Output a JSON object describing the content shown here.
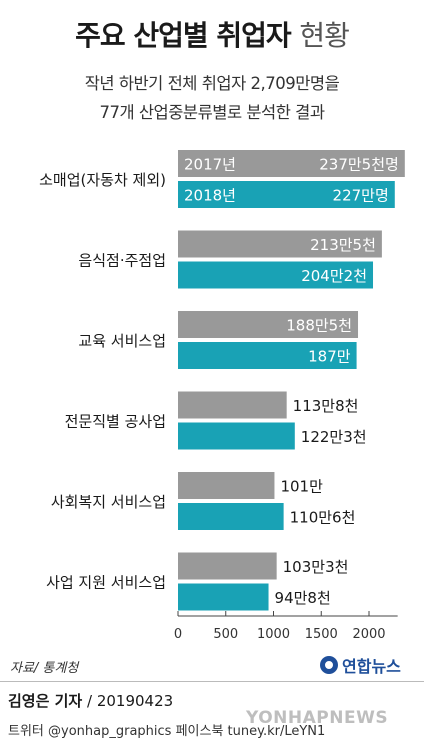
{
  "title": {
    "main": "주요 산업별 취업자",
    "suffix": "현황"
  },
  "subtitle": {
    "line1": "작년 하반기 전체 취업자 2,709만명을",
    "line2": "77개 산업중분류별로 분석한 결과"
  },
  "colors": {
    "y2017": "#999999",
    "y2018": "#19a2b5",
    "axis": "#444444"
  },
  "chart_data": {
    "type": "bar",
    "orientation": "horizontal",
    "categories": [
      "소매업(자동차 제외)",
      "음식점·주점업",
      "교육 서비스업",
      "전문직별 공사업",
      "사회복지 서비스업",
      "사업 지원 서비스업"
    ],
    "series": [
      {
        "name": "2017년",
        "values": [
          2375,
          2135,
          1885,
          1138,
          1010,
          1033
        ],
        "labels": [
          "237만5천명",
          "213만5천",
          "188만5천",
          "113만8천",
          "101만",
          "103만3천"
        ]
      },
      {
        "name": "2018년",
        "values": [
          2270,
          2042,
          1870,
          1223,
          1106,
          948
        ],
        "labels": [
          "227만명",
          "204만2천",
          "187만",
          "122만3천",
          "110만6천",
          "94만8천"
        ]
      }
    ],
    "xlim": [
      0,
      2500
    ],
    "xticks": [
      0,
      500,
      1000,
      1500,
      2000
    ],
    "grid": false
  },
  "source": "자료/ 통계청",
  "logo": "연합뉴스",
  "credit": {
    "name": "김영은 기자",
    "date": " / 20190423"
  },
  "social": "트위터 @yonhap_graphics  페이스북 tuney.kr/LeYN1",
  "watermark": "YONHAPNEWS"
}
